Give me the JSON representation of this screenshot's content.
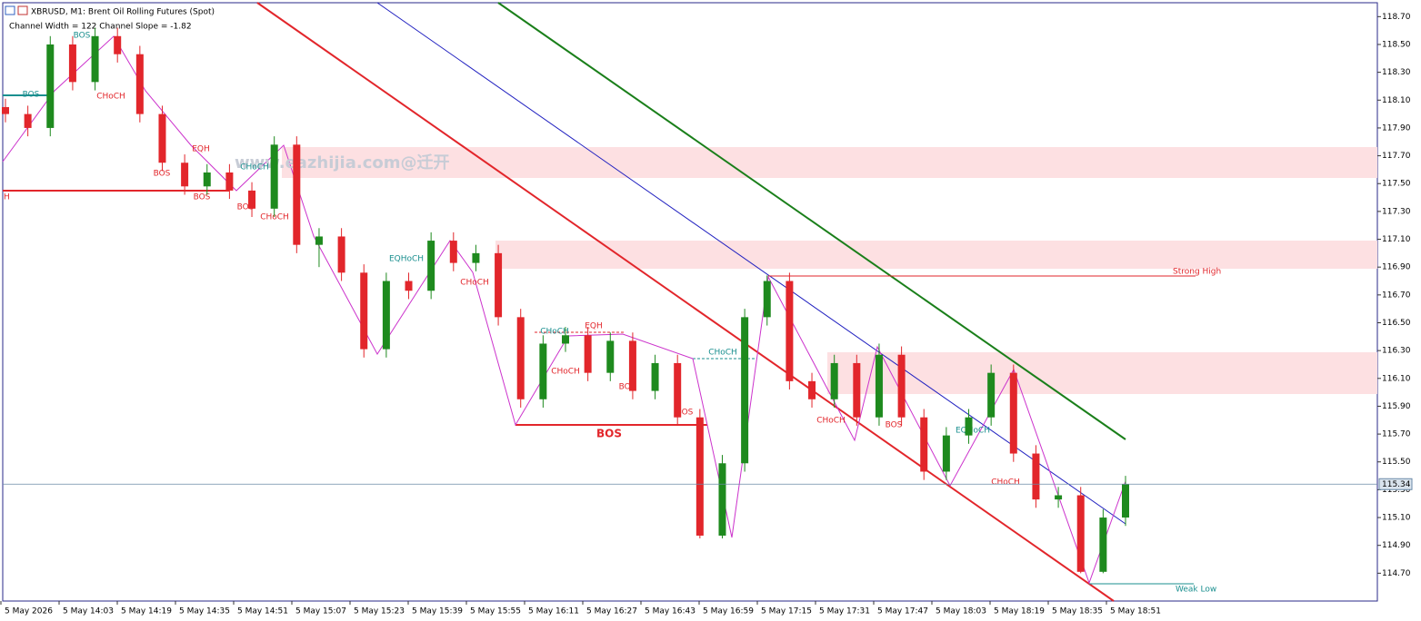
{
  "chart_data": {
    "type": "candlestick",
    "title": "XBRUSD, M1:  Brent Oil Rolling Futures (Spot)",
    "subtitle": "Channel Width = 122 Channel Slope = -1.82",
    "watermark": "www.eazhijia.com@迁开",
    "x_labels": [
      "5 May 2026",
      "5 May 14:03",
      "5 May 14:19",
      "5 May 14:35",
      "5 May 14:51",
      "5 May 15:07",
      "5 May 15:23",
      "5 May 15:39",
      "5 May 15:55",
      "5 May 16:11",
      "5 May 16:27",
      "5 May 16:43",
      "5 May 16:59",
      "5 May 17:15",
      "5 May 17:31",
      "5 May 17:47",
      "5 May 18:03",
      "5 May 18:19",
      "5 May 18:35",
      "5 May 18:51"
    ],
    "ylim": [
      114.5,
      118.8
    ],
    "yticks": [
      {
        "value": 114.7,
        "label": "114.70"
      },
      {
        "value": 114.9,
        "label": "114.90"
      },
      {
        "value": 115.1,
        "label": "115.10"
      },
      {
        "value": 115.3,
        "label": "115.30"
      },
      {
        "value": 115.5,
        "label": "115.50"
      },
      {
        "value": 115.7,
        "label": "115.70"
      },
      {
        "value": 115.9,
        "label": "115.90"
      },
      {
        "value": 116.1,
        "label": "116.10"
      },
      {
        "value": 116.3,
        "label": "116.30"
      },
      {
        "value": 116.5,
        "label": "116.50"
      },
      {
        "value": 116.7,
        "label": "116.70"
      },
      {
        "value": 116.9,
        "label": "116.90"
      },
      {
        "value": 117.1,
        "label": "117.10"
      },
      {
        "value": 117.3,
        "label": "117.30"
      },
      {
        "value": 117.5,
        "label": "117.50"
      },
      {
        "value": 117.7,
        "label": "117.70"
      },
      {
        "value": 117.9,
        "label": "117.90"
      },
      {
        "value": 118.1,
        "label": "118.10"
      },
      {
        "value": 118.3,
        "label": "118.30"
      },
      {
        "value": 118.5,
        "label": "118.50"
      },
      {
        "value": 118.7,
        "label": "118.70"
      }
    ],
    "current_price": {
      "value": 115.34,
      "label": "115.34"
    },
    "up_color": "#1e8a1e",
    "down_color": "#e2262b",
    "open": [
      118.05,
      118.0,
      117.9,
      118.5,
      118.23,
      118.56,
      118.43,
      118.0,
      117.65,
      117.48,
      117.58,
      117.45,
      117.32,
      117.78,
      117.06,
      117.12,
      116.86,
      116.31,
      116.8,
      116.73,
      117.09,
      116.93,
      117.0,
      116.54,
      115.95,
      116.35,
      116.41,
      116.14,
      116.37,
      116.01,
      116.21,
      115.82,
      114.97,
      115.49,
      116.54,
      116.8,
      116.08,
      115.95,
      116.21,
      115.82,
      116.27,
      115.82,
      115.43,
      115.69,
      115.82,
      116.14,
      115.56,
      115.23,
      115.26,
      114.71,
      115.1
    ],
    "high": [
      118.11,
      118.06,
      118.56,
      118.56,
      118.62,
      118.62,
      118.49,
      118.06,
      117.71,
      117.64,
      117.64,
      117.51,
      117.84,
      117.84,
      117.18,
      117.18,
      116.92,
      116.86,
      116.86,
      117.15,
      117.15,
      117.06,
      117.06,
      116.6,
      116.41,
      116.47,
      116.47,
      116.43,
      116.43,
      116.27,
      116.27,
      115.88,
      115.55,
      116.6,
      116.84,
      116.86,
      116.14,
      116.27,
      116.27,
      116.35,
      116.33,
      115.88,
      115.75,
      115.88,
      116.2,
      116.2,
      115.62,
      115.32,
      115.32,
      115.16,
      115.4
    ],
    "low": [
      117.94,
      117.84,
      117.84,
      118.17,
      118.17,
      118.37,
      117.94,
      117.59,
      117.42,
      117.42,
      117.39,
      117.26,
      117.26,
      117.0,
      116.9,
      116.8,
      116.25,
      116.25,
      116.67,
      116.67,
      116.87,
      116.87,
      116.48,
      115.89,
      115.89,
      116.29,
      116.08,
      116.08,
      115.95,
      115.95,
      115.76,
      114.95,
      114.95,
      115.43,
      116.48,
      116.02,
      115.89,
      115.89,
      115.76,
      115.76,
      115.76,
      115.37,
      115.37,
      115.63,
      115.76,
      115.5,
      115.17,
      115.17,
      114.7,
      114.7,
      115.04
    ],
    "close": [
      118.0,
      117.9,
      118.5,
      118.23,
      118.56,
      118.43,
      118.0,
      117.65,
      117.48,
      117.58,
      117.45,
      117.32,
      117.78,
      117.06,
      117.12,
      116.86,
      116.31,
      116.8,
      116.73,
      117.09,
      116.93,
      117.0,
      116.54,
      115.95,
      116.35,
      116.41,
      116.14,
      116.37,
      116.01,
      116.21,
      115.82,
      114.97,
      115.49,
      116.54,
      116.8,
      116.08,
      115.95,
      116.21,
      115.82,
      116.27,
      115.82,
      115.43,
      115.69,
      115.82,
      116.14,
      115.56,
      115.23,
      115.26,
      114.71,
      115.1,
      115.34
    ],
    "annotations": [
      "BOS",
      "CHoCH",
      "BOS",
      "EQH",
      "BOS",
      "BOS",
      "CHoCH",
      "BOS",
      "CHoCH",
      "EQHoCH",
      "CHoCH",
      "CHoCH",
      "EQH",
      "CHoCH",
      "BOS",
      "BOS",
      "CHoCH",
      "BOS",
      "CHoCH",
      "BOS",
      "EQHoCH",
      "CHoCH",
      "Strong High",
      "Weak Low",
      "H"
    ]
  }
}
